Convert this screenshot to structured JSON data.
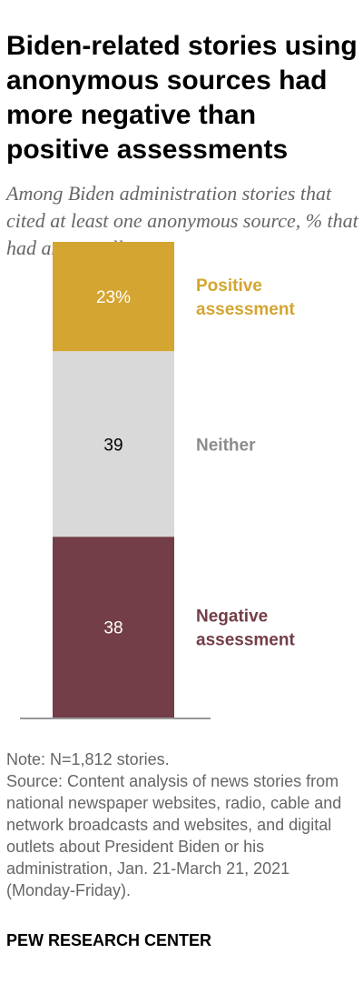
{
  "title": "Biden-related stories using anonymous sources had more negative than positive assessments",
  "subtitle": "Among Biden administration stories that cited at least one anonymous source, % that had an overall …",
  "chart_data": {
    "type": "bar",
    "stacked": true,
    "categories": [
      ""
    ],
    "series": [
      {
        "name": "Positive assessment",
        "label_lines": [
          "Positive",
          "assessment"
        ],
        "value": 23,
        "value_label": "23%",
        "color": "#d4a531",
        "label_color": "#d4a531",
        "value_text_color": "#ffffff"
      },
      {
        "name": "Neither",
        "label_lines": [
          "Neither"
        ],
        "value": 39,
        "value_label": "39",
        "color": "#d9d9d9",
        "label_color": "#8c8c8c",
        "value_text_color": "#000000"
      },
      {
        "name": "Negative assessment",
        "label_lines": [
          "Negative",
          "assessment"
        ],
        "value": 38,
        "value_label": "38",
        "color": "#733e47",
        "label_color": "#733e47",
        "value_text_color": "#ffffff"
      }
    ],
    "ylim": [
      0,
      100
    ],
    "legend": "right of bar",
    "grid": false
  },
  "note": "Note: N=1,812 stories.",
  "source": "Source: Content analysis of news stories from national newspaper websites, radio, cable and network broadcasts and websites, and digital outlets about President Biden or his administration, Jan. 21-March 21, 2021 (Monday-Friday).",
  "brand": "PEW RESEARCH CENTER"
}
